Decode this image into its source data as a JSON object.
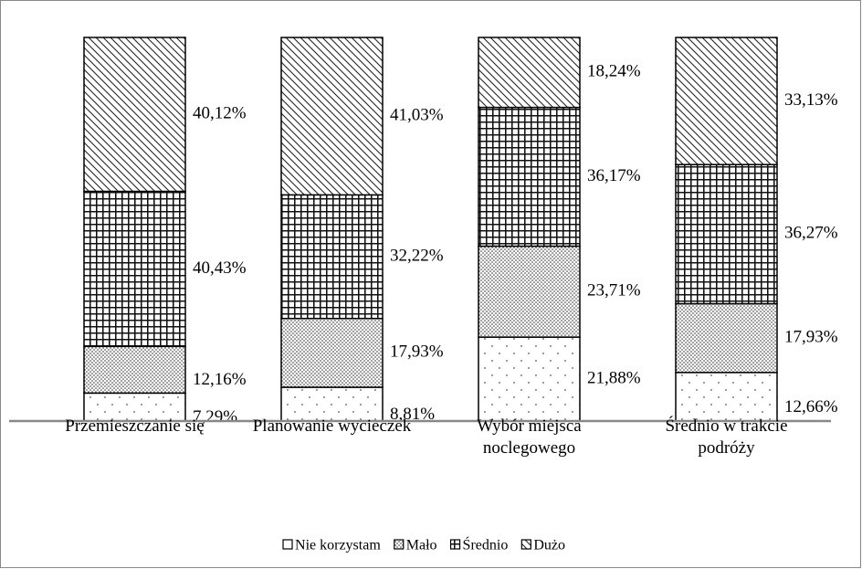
{
  "chart_data": {
    "type": "stacked_bar",
    "categories": [
      "Przemieszczanie się",
      "Planowanie wycieczek",
      "Wybór miejsca noclegowego",
      "Średnio w trakcie podróży"
    ],
    "series": [
      {
        "name": "Nie korzystam",
        "color": "#ffffff",
        "pattern": "sparse-dots",
        "values": [
          7.29,
          8.81,
          21.88,
          12.66
        ],
        "value_labels": [
          "7,29%",
          "8,81%",
          "21,88%",
          "12,66%"
        ]
      },
      {
        "name": "Mało",
        "color": "#d9d9d9",
        "pattern": "dense-dots",
        "values": [
          12.16,
          17.93,
          23.71,
          17.93
        ],
        "value_labels": [
          "12,16%",
          "17,93%",
          "23,71%",
          "17,93%"
        ]
      },
      {
        "name": "Średnio",
        "color": "#ffffff",
        "pattern": "grid",
        "values": [
          40.43,
          32.22,
          36.17,
          36.27
        ],
        "value_labels": [
          "40,43%",
          "32,22%",
          "36,17%",
          "36,27%"
        ]
      },
      {
        "name": "Dużo",
        "color": "#ffffff",
        "pattern": "wave",
        "values": [
          40.12,
          41.03,
          18.24,
          33.13
        ],
        "value_labels": [
          "40,12%",
          "41,03%",
          "18,24%",
          "33,13%"
        ]
      }
    ],
    "ylim": [
      0,
      100
    ],
    "legend": "bottom"
  }
}
